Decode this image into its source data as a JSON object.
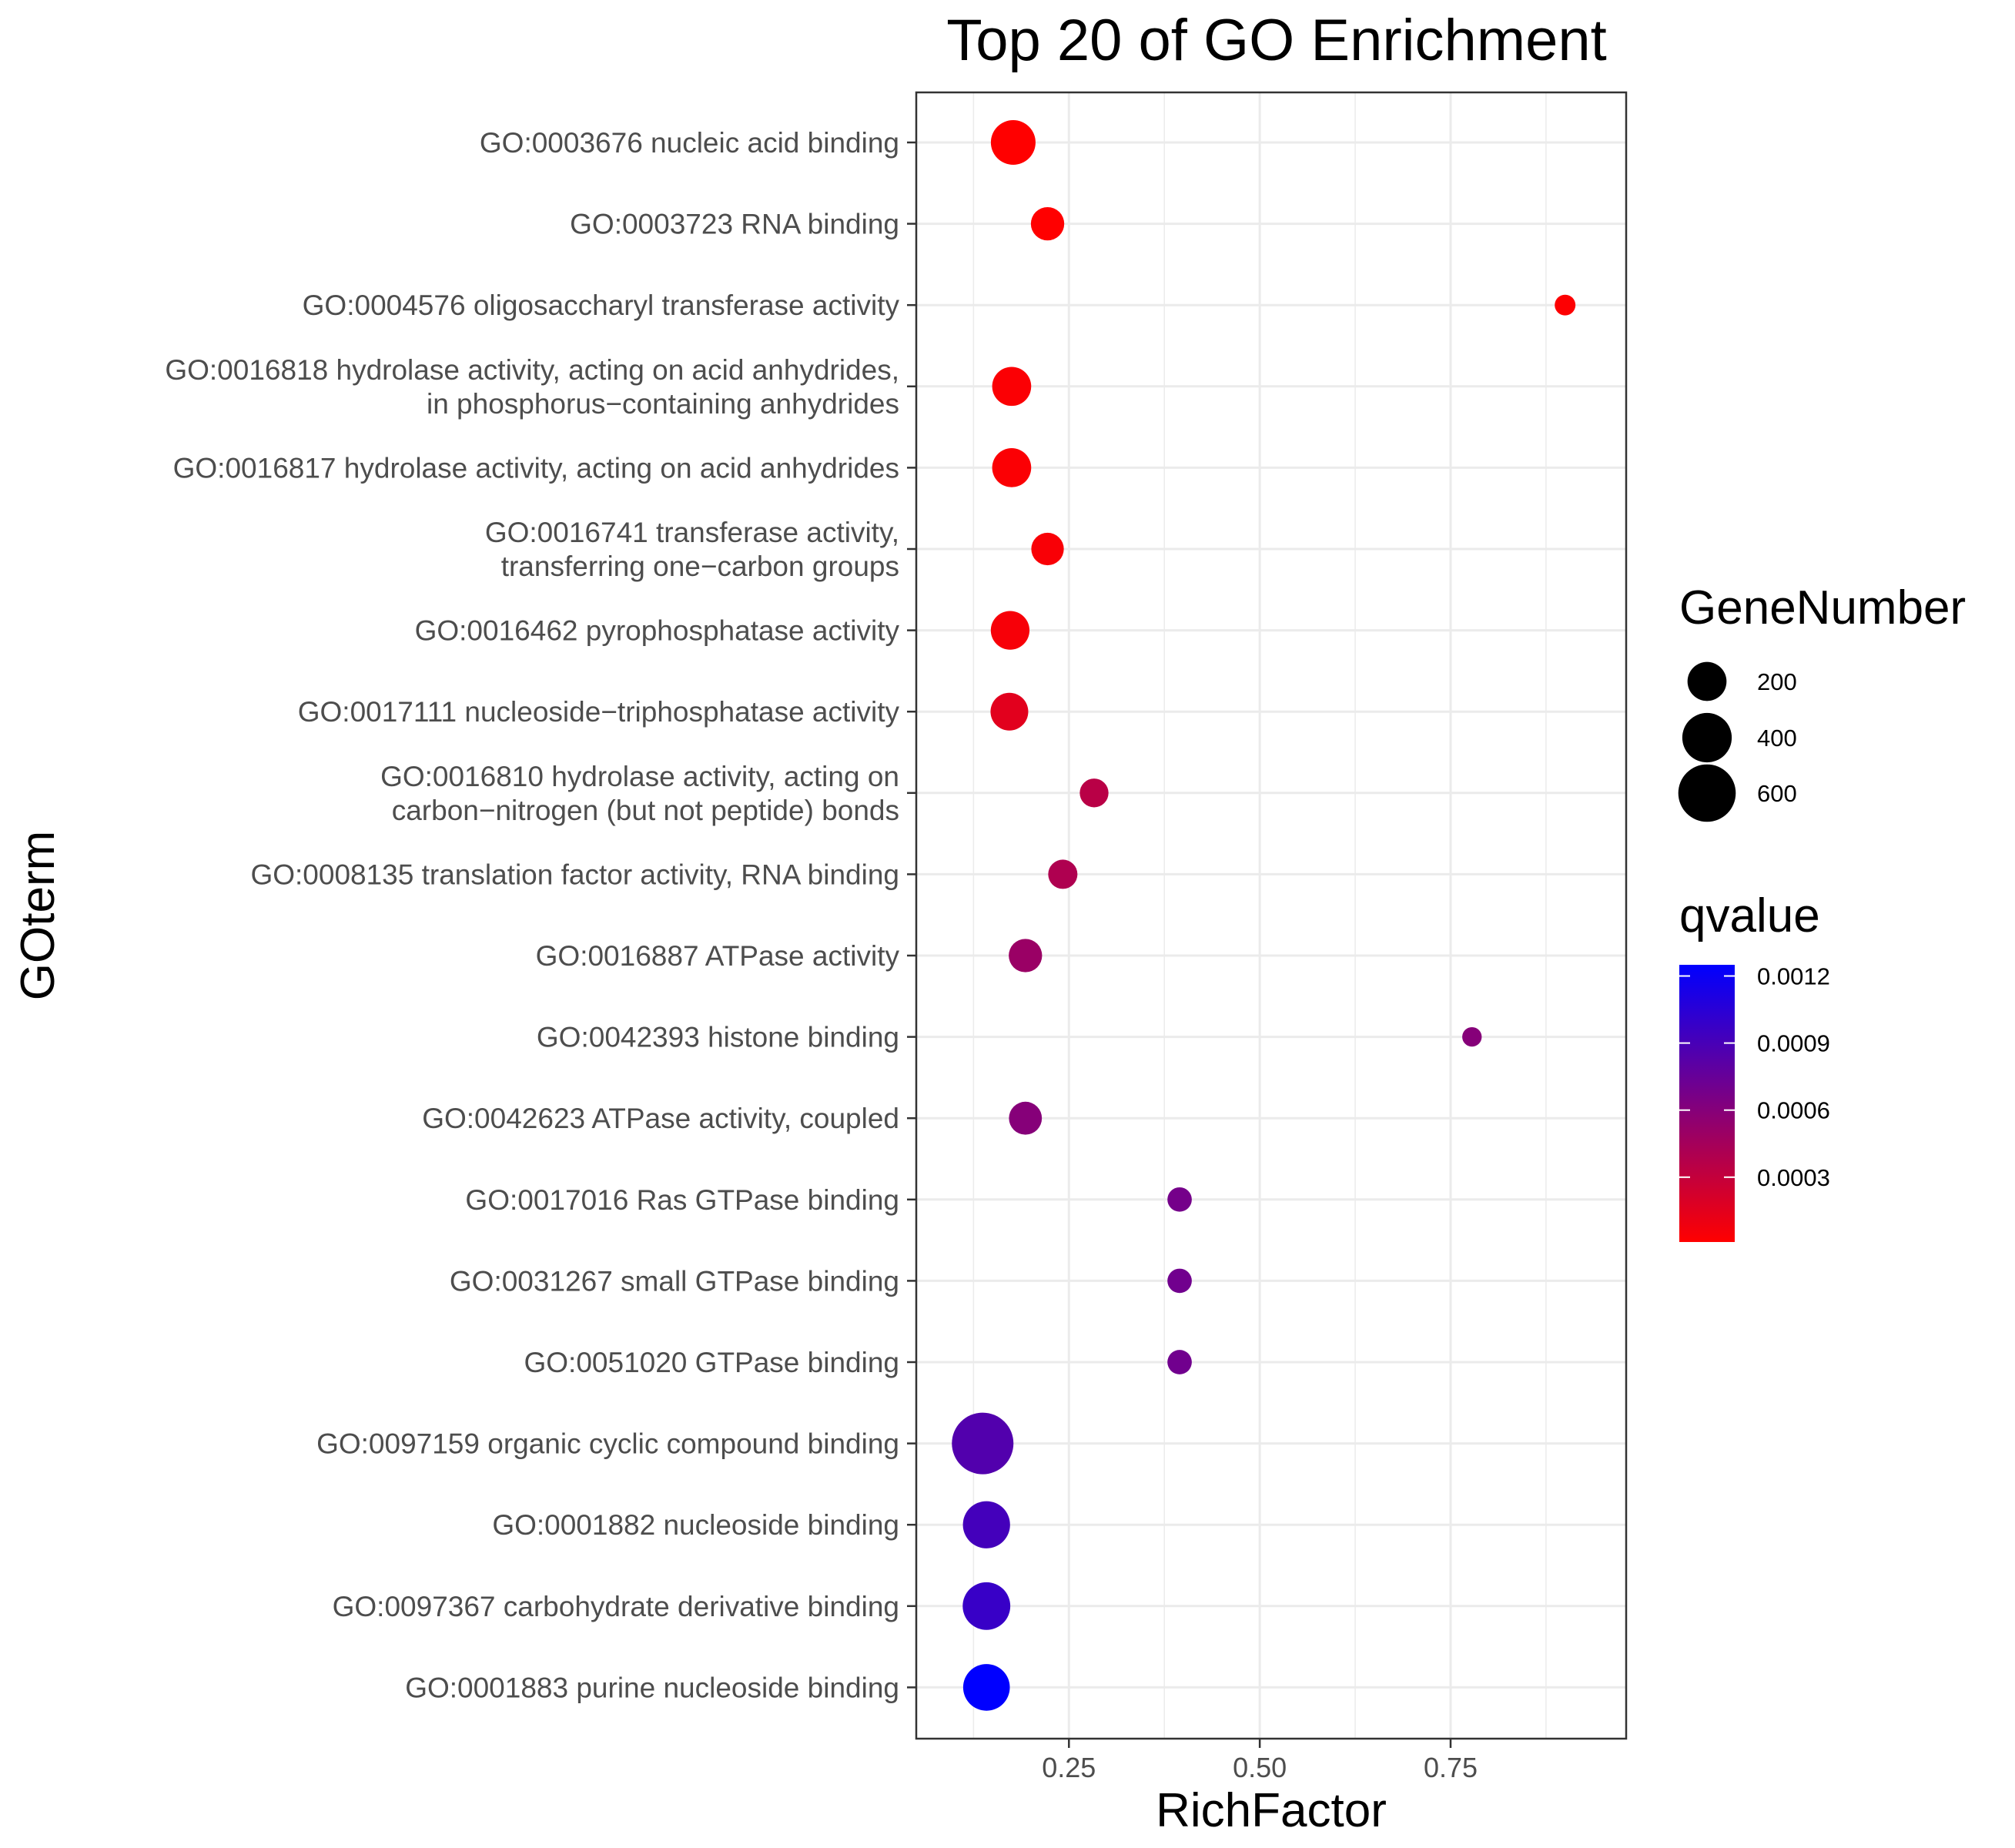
{
  "chart_data": {
    "type": "scatter",
    "title": "Top 20 of GO Enrichment",
    "xlabel": "RichFactor",
    "ylabel": "GOterm",
    "xlim": [
      0.05,
      0.98
    ],
    "x_ticks": [
      "0.25",
      "0.50",
      "0.75"
    ],
    "x_tick_values": [
      0.25,
      0.5,
      0.75
    ],
    "grid": true,
    "points": [
      {
        "term": [
          "GO:0003676 nucleic acid binding"
        ],
        "x": 0.177,
        "genes": 300,
        "q": 1e-05
      },
      {
        "term": [
          "GO:0003723 RNA binding"
        ],
        "x": 0.222,
        "genes": 120,
        "q": 1e-05
      },
      {
        "term": [
          "GO:0004576 oligosaccharyl transferase activity"
        ],
        "x": 0.9,
        "genes": 15,
        "q": 2e-05
      },
      {
        "term": [
          "GO:0016818 hydrolase activity, acting on acid anhydrides,",
          "in phosphorus−containing anhydrides"
        ],
        "x": 0.175,
        "genes": 200,
        "q": 3e-05
      },
      {
        "term": [
          "GO:0016817 hydrolase activity, acting on acid anhydrides"
        ],
        "x": 0.175,
        "genes": 200,
        "q": 3e-05
      },
      {
        "term": [
          "GO:0016741 transferase activity,",
          "transferring one−carbon groups"
        ],
        "x": 0.222,
        "genes": 110,
        "q": 4e-05
      },
      {
        "term": [
          "GO:0016462 pyrophosphatase activity"
        ],
        "x": 0.173,
        "genes": 195,
        "q": 5e-05
      },
      {
        "term": [
          "GO:0017111 nucleoside−triphosphatase activity"
        ],
        "x": 0.172,
        "genes": 180,
        "q": 0.00015
      },
      {
        "term": [
          "GO:0016810 hydrolase activity, acting on",
          "carbon−nitrogen (but not peptide) bonds"
        ],
        "x": 0.283,
        "genes": 70,
        "q": 0.00035
      },
      {
        "term": [
          "GO:0008135 translation factor activity, RNA binding"
        ],
        "x": 0.242,
        "genes": 75,
        "q": 0.0004
      },
      {
        "term": [
          "GO:0016887 ATPase activity"
        ],
        "x": 0.193,
        "genes": 120,
        "q": 0.0005
      },
      {
        "term": [
          "GO:0042393 histone binding"
        ],
        "x": 0.778,
        "genes": 10,
        "q": 0.0006
      },
      {
        "term": [
          "GO:0042623 ATPase activity, coupled"
        ],
        "x": 0.193,
        "genes": 115,
        "q": 0.0006
      },
      {
        "term": [
          "GO:0017016 Ras GTPase binding"
        ],
        "x": 0.395,
        "genes": 35,
        "q": 0.00068
      },
      {
        "term": [
          "GO:0031267 small GTPase binding"
        ],
        "x": 0.395,
        "genes": 35,
        "q": 0.0007
      },
      {
        "term": [
          "GO:0051020 GTPase binding"
        ],
        "x": 0.395,
        "genes": 35,
        "q": 0.0007
      },
      {
        "term": [
          "GO:0097159 organic cyclic compound binding"
        ],
        "x": 0.137,
        "genes": 720,
        "q": 0.00085
      },
      {
        "term": [
          "GO:0001882 nucleoside binding"
        ],
        "x": 0.142,
        "genes": 350,
        "q": 0.00092
      },
      {
        "term": [
          "GO:0097367 carbohydrate derivative binding"
        ],
        "x": 0.142,
        "genes": 360,
        "q": 0.00098
      },
      {
        "term": [
          "GO:0001883 purine nucleoside binding"
        ],
        "x": 0.142,
        "genes": 340,
        "q": 0.00125
      }
    ],
    "size_legend": {
      "title": "GeneNumber",
      "labels": [
        "200",
        "400",
        "600"
      ],
      "values": [
        200,
        400,
        600
      ]
    },
    "color_legend": {
      "title": "qvalue",
      "labels": [
        "0.0012",
        "0.0009",
        "0.0006",
        "0.0003"
      ],
      "values": [
        0.0012,
        0.0009,
        0.0006,
        0.0003
      ],
      "range": [
        1e-05,
        0.00125
      ],
      "low_color": "#ff0000",
      "high_color": "#0000ff"
    }
  }
}
